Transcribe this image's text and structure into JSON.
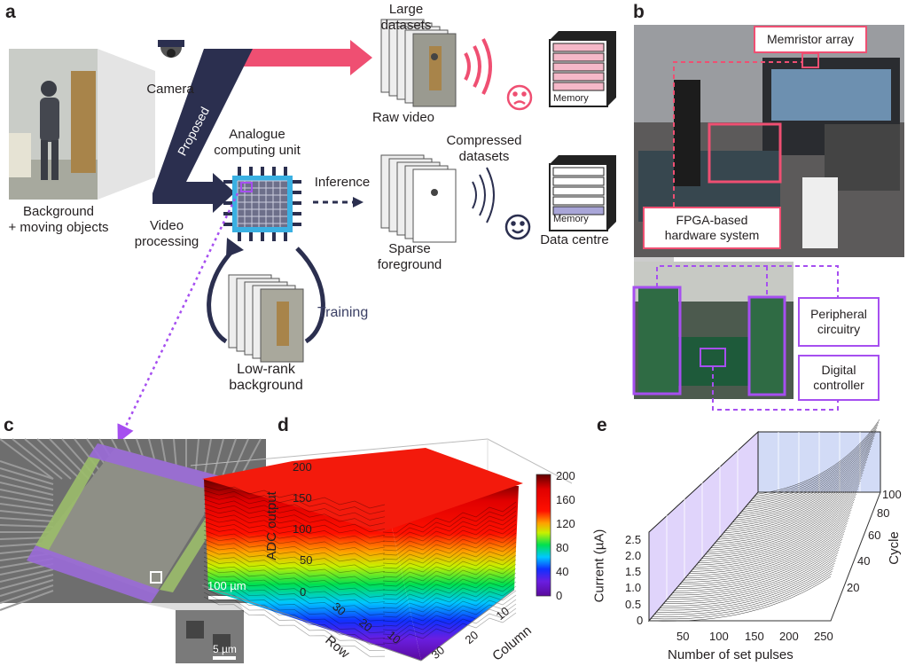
{
  "panels": {
    "a": "a",
    "b": "b",
    "c": "c",
    "d": "d",
    "e": "e"
  },
  "colors": {
    "navy": "#2b2f4f",
    "pink": "#ef4f72",
    "blue": "#3ab0e2",
    "purple": "#a64ff0",
    "memory_pink": "#f5b8c8",
    "memory_purple": "#a9a6d8"
  },
  "panel_a": {
    "background_label": "Background\n+ moving objects",
    "camera_label": "Camera",
    "proposed_label": "Proposed",
    "video_processing_label": "Video\nprocessing",
    "analogue_unit_label": "Analogue\ncomputing unit",
    "inference_label": "Inference",
    "large_datasets_label": "Large\ndatasets",
    "raw_video_label": "Raw video",
    "compressed_datasets_label": "Compressed\ndatasets",
    "sparse_foreground_label": "Sparse\nforeground",
    "memory_label": "Memory",
    "data_centre_label": "Data centre",
    "training_label": "Training",
    "low_rank_label": "Low-rank\nbackground",
    "icons": [
      "camera-icon",
      "sad-face-icon",
      "happy-face-icon",
      "signal-waves-icon",
      "memory-icon",
      "chip-icon",
      "person-icon"
    ]
  },
  "panel_b": {
    "memristor_label": "Memristor array",
    "fpga_label": "FPGA-based\nhardware system",
    "peripheral_label": "Peripheral\ncircuitry",
    "digital_label": "Digital\ncontroller"
  },
  "panel_c": {
    "scale_large": "100 µm",
    "scale_small": "5 µm"
  },
  "chart_data": [
    {
      "panel": "d",
      "type": "surface",
      "zlabel": "ADC output",
      "xlabel": "Row",
      "ylabel": "Column",
      "z_ticks": [
        "0",
        "50",
        "100",
        "150",
        "200"
      ],
      "row_ticks": [
        "10",
        "20",
        "30"
      ],
      "column_ticks": [
        "10",
        "20",
        "30"
      ],
      "zlim": [
        0,
        200
      ],
      "colorbar": {
        "ticks": [
          "0",
          "40",
          "80",
          "120",
          "160",
          "200"
        ],
        "range": [
          0,
          200
        ],
        "colormap": "rainbow (purple-blue-cyan-green-yellow-red-dark red)"
      }
    },
    {
      "panel": "e",
      "type": "line",
      "ylabel": "Current (µA)",
      "xlabel": "Number of set pulses",
      "zlabel": "Cycle",
      "y_ticks": [
        "0",
        "0.5",
        "1.0",
        "1.5",
        "2.0",
        "2.5"
      ],
      "x_ticks": [
        "50",
        "100",
        "150",
        "200",
        "250"
      ],
      "z_ticks": [
        "20",
        "40",
        "60",
        "80",
        "100"
      ],
      "xlim": [
        0,
        250
      ],
      "ylim": [
        0,
        2.75
      ],
      "zlim": [
        0,
        100
      ],
      "grid": true
    }
  ]
}
